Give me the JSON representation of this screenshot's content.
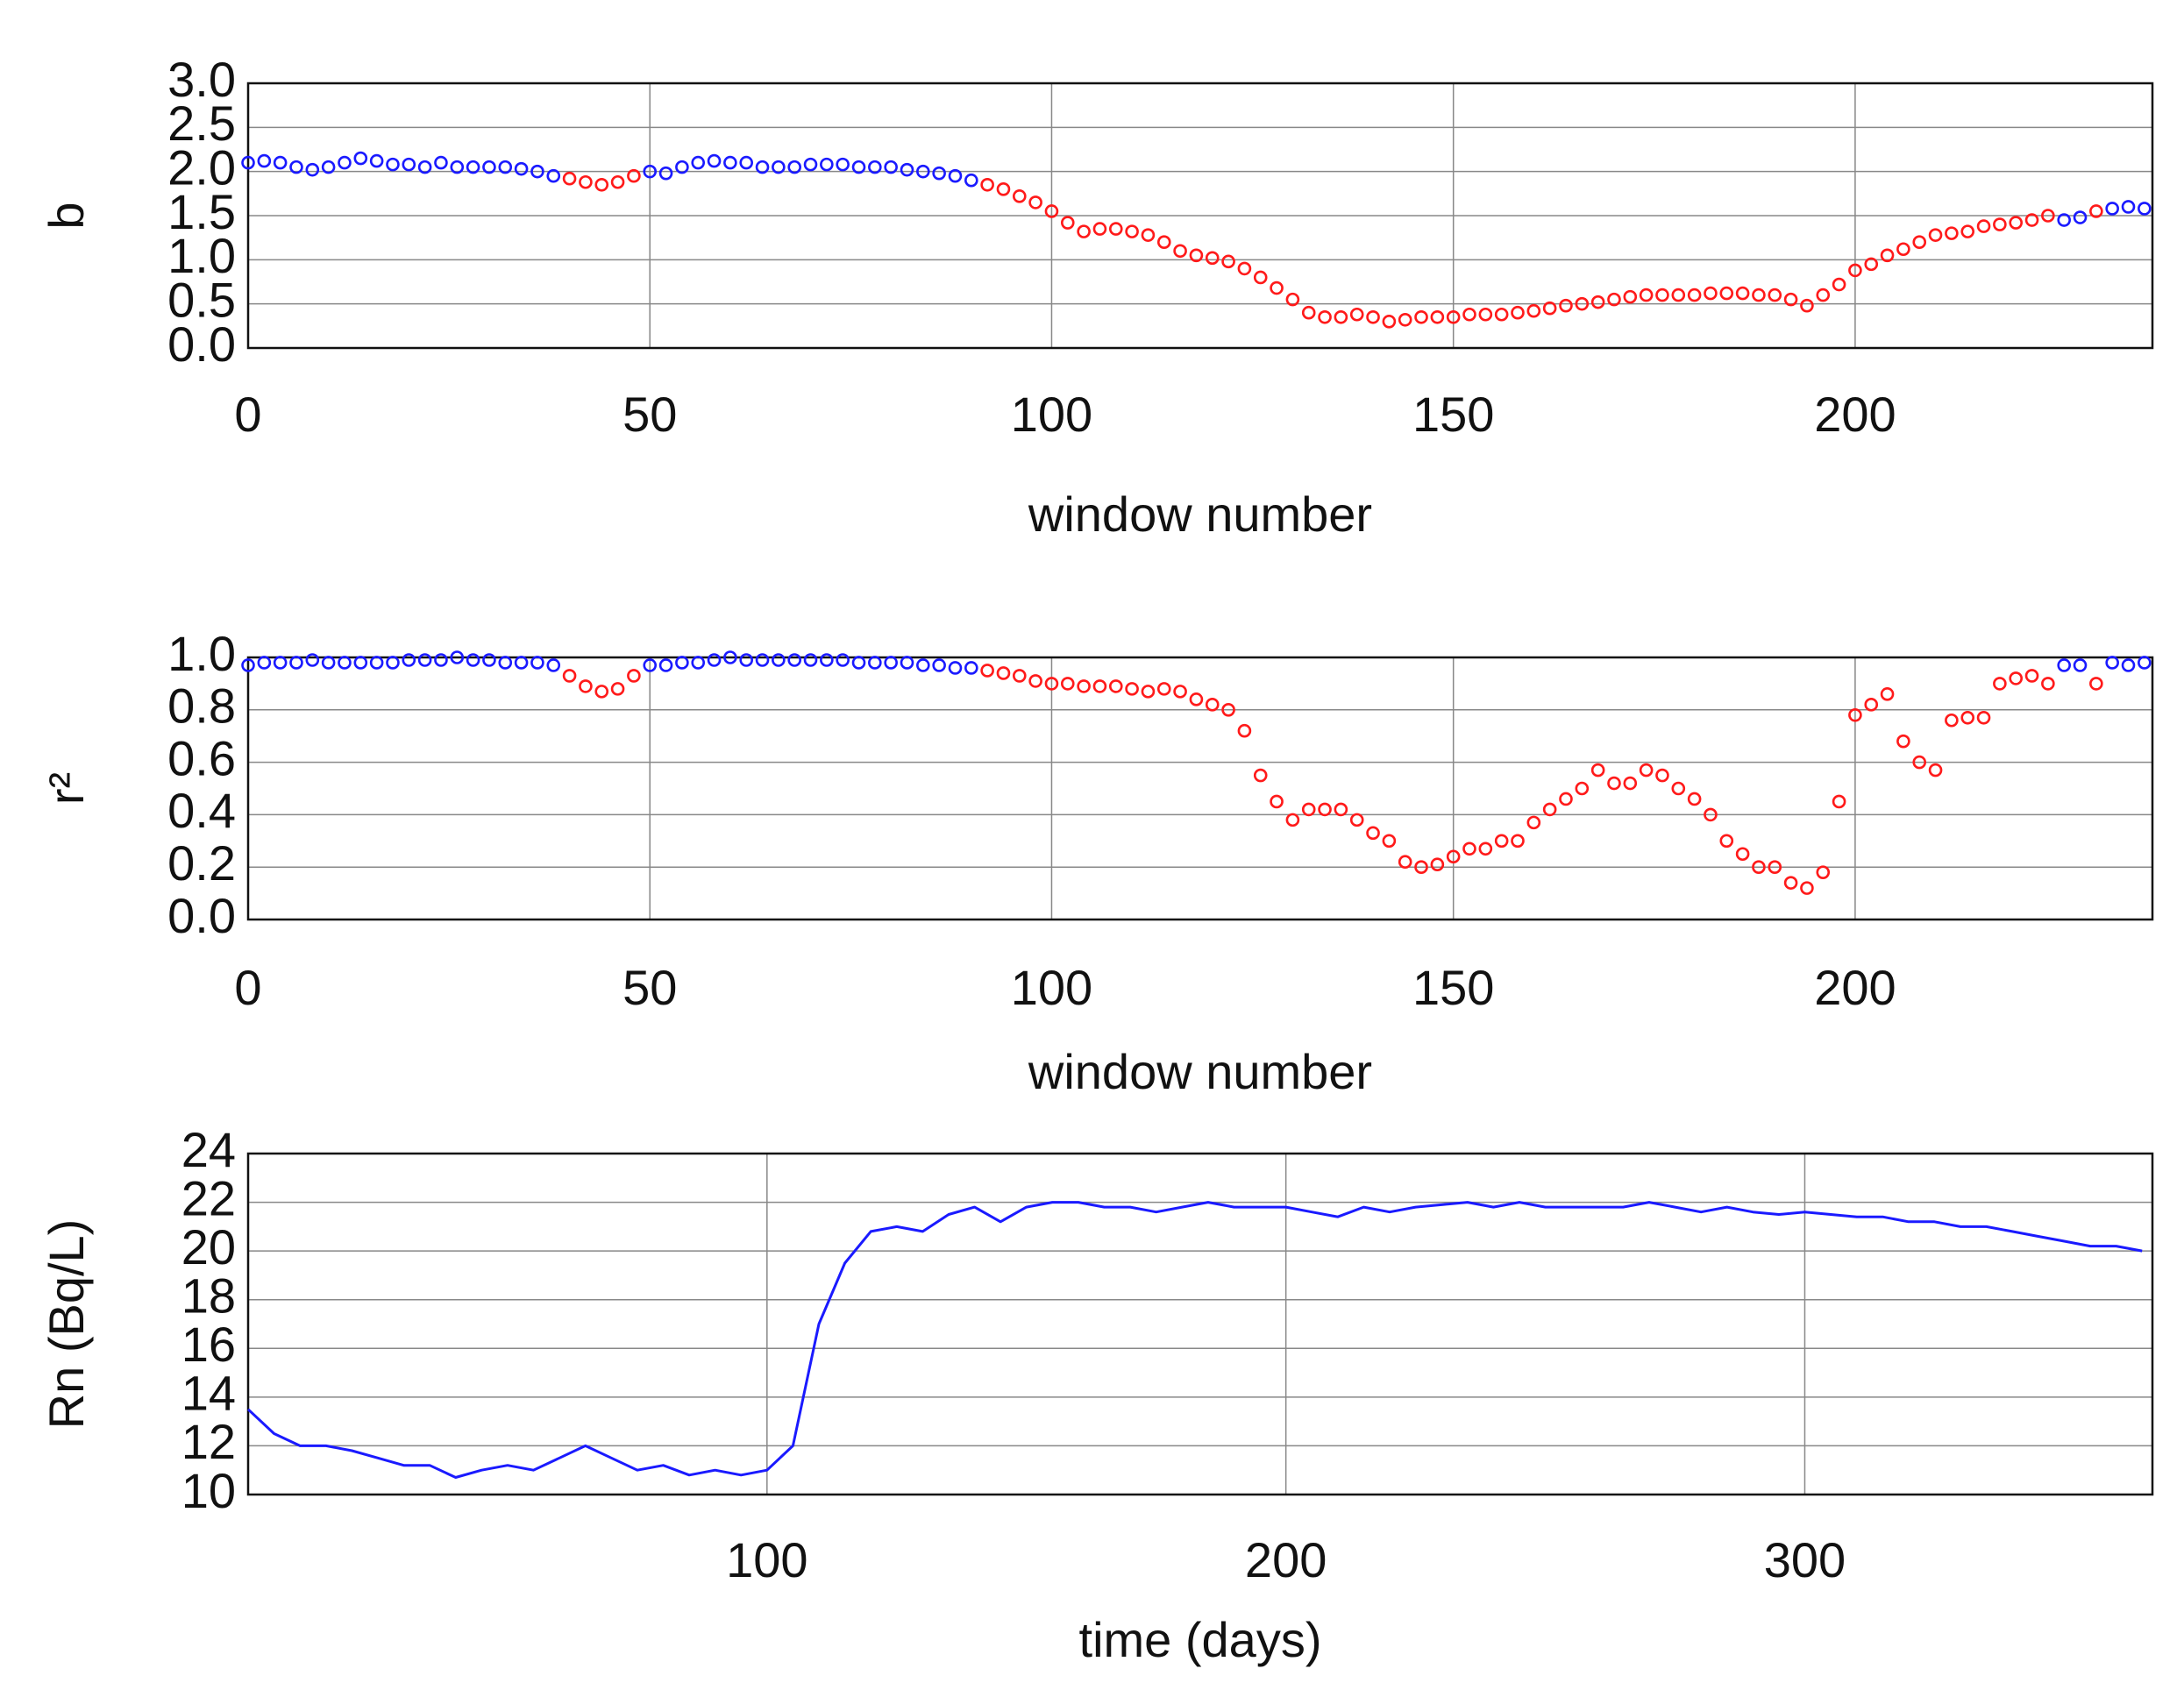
{
  "chart_data": [
    {
      "type": "scatter",
      "x_label": "window number",
      "y_label": "b",
      "xlim": [
        0,
        237
      ],
      "ylim": [
        0,
        3
      ],
      "xticks": [
        0,
        50,
        100,
        150,
        200
      ],
      "yticks": [
        {
          "value": 0,
          "label": "0.0"
        },
        {
          "value": 0.5,
          "label": "0.5"
        },
        {
          "value": 1,
          "label": "1.0"
        },
        {
          "value": 1.5,
          "label": "1.5"
        },
        {
          "value": 2,
          "label": "2.0"
        },
        {
          "value": 2.5,
          "label": "2.5"
        },
        {
          "value": 3,
          "label": "3.0"
        }
      ],
      "grid": true,
      "series": [
        {
          "color": "#1a1aff",
          "x": [
            0,
            2,
            4,
            6,
            8,
            10,
            12,
            14,
            16,
            18,
            20,
            22,
            24,
            26,
            28,
            30,
            32,
            34,
            36,
            38,
            50,
            52,
            54,
            56,
            58,
            60,
            62,
            64,
            66,
            68,
            70,
            72,
            74,
            76,
            78,
            80,
            82,
            84,
            86,
            88,
            90,
            226,
            228,
            232,
            234,
            236
          ],
          "values": [
            2.1,
            2.12,
            2.1,
            2.05,
            2.02,
            2.05,
            2.1,
            2.15,
            2.12,
            2.08,
            2.08,
            2.05,
            2.1,
            2.05,
            2.05,
            2.05,
            2.05,
            2.03,
            2.0,
            1.95,
            2.0,
            1.98,
            2.05,
            2.1,
            2.12,
            2.1,
            2.1,
            2.05,
            2.05,
            2.05,
            2.08,
            2.08,
            2.08,
            2.05,
            2.05,
            2.05,
            2.02,
            2.0,
            1.98,
            1.95,
            1.9,
            1.45,
            1.48,
            1.58,
            1.6,
            1.58
          ]
        },
        {
          "color": "#ff1a1a",
          "x": [
            40,
            42,
            44,
            46,
            48,
            92,
            94,
            96,
            98,
            100,
            102,
            104,
            106,
            108,
            110,
            112,
            114,
            116,
            118,
            120,
            122,
            124,
            126,
            128,
            130,
            132,
            134,
            136,
            138,
            140,
            142,
            144,
            146,
            148,
            150,
            152,
            154,
            156,
            158,
            160,
            162,
            164,
            166,
            168,
            170,
            172,
            174,
            176,
            178,
            180,
            182,
            184,
            186,
            188,
            190,
            192,
            194,
            196,
            198,
            200,
            202,
            204,
            206,
            208,
            210,
            212,
            214,
            216,
            218,
            220,
            222,
            224,
            230
          ],
          "values": [
            1.92,
            1.88,
            1.85,
            1.88,
            1.95,
            1.85,
            1.8,
            1.72,
            1.65,
            1.55,
            1.42,
            1.32,
            1.35,
            1.35,
            1.32,
            1.28,
            1.2,
            1.1,
            1.05,
            1.02,
            0.98,
            0.9,
            0.8,
            0.68,
            0.55,
            0.4,
            0.35,
            0.35,
            0.38,
            0.35,
            0.3,
            0.32,
            0.35,
            0.35,
            0.35,
            0.38,
            0.38,
            0.38,
            0.4,
            0.42,
            0.45,
            0.48,
            0.5,
            0.52,
            0.55,
            0.58,
            0.6,
            0.6,
            0.6,
            0.6,
            0.62,
            0.62,
            0.62,
            0.6,
            0.6,
            0.55,
            0.48,
            0.6,
            0.72,
            0.88,
            0.95,
            1.05,
            1.12,
            1.2,
            1.28,
            1.3,
            1.32,
            1.38,
            1.4,
            1.42,
            1.45,
            1.5,
            1.55
          ]
        }
      ]
    },
    {
      "type": "scatter",
      "x_label": "window number",
      "y_label": "r²",
      "xlim": [
        0,
        237
      ],
      "ylim": [
        0,
        1
      ],
      "xticks": [
        0,
        50,
        100,
        150,
        200
      ],
      "yticks": [
        {
          "value": 0,
          "label": "0.0"
        },
        {
          "value": 0.2,
          "label": "0.2"
        },
        {
          "value": 0.4,
          "label": "0.4"
        },
        {
          "value": 0.6,
          "label": "0.6"
        },
        {
          "value": 0.8,
          "label": "0.8"
        },
        {
          "value": 1,
          "label": "1.0"
        }
      ],
      "grid": true,
      "series": [
        {
          "color": "#1a1aff",
          "x": [
            0,
            2,
            4,
            6,
            8,
            10,
            12,
            14,
            16,
            18,
            20,
            22,
            24,
            26,
            28,
            30,
            32,
            34,
            36,
            38,
            50,
            52,
            54,
            56,
            58,
            60,
            62,
            64,
            66,
            68,
            70,
            72,
            74,
            76,
            78,
            80,
            82,
            84,
            86,
            88,
            90,
            226,
            228,
            232,
            234,
            236
          ],
          "values": [
            0.97,
            0.98,
            0.98,
            0.98,
            0.99,
            0.98,
            0.98,
            0.98,
            0.98,
            0.98,
            0.99,
            0.99,
            0.99,
            1.0,
            0.99,
            0.99,
            0.98,
            0.98,
            0.98,
            0.97,
            0.97,
            0.97,
            0.98,
            0.98,
            0.99,
            1.0,
            0.99,
            0.99,
            0.99,
            0.99,
            0.99,
            0.99,
            0.99,
            0.98,
            0.98,
            0.98,
            0.98,
            0.97,
            0.97,
            0.96,
            0.96,
            0.97,
            0.97,
            0.98,
            0.97,
            0.98
          ]
        },
        {
          "color": "#ff1a1a",
          "x": [
            40,
            42,
            44,
            46,
            48,
            92,
            94,
            96,
            98,
            100,
            102,
            104,
            106,
            108,
            110,
            112,
            114,
            116,
            118,
            120,
            122,
            124,
            126,
            128,
            130,
            132,
            134,
            136,
            138,
            140,
            142,
            144,
            146,
            148,
            150,
            152,
            154,
            156,
            158,
            160,
            162,
            164,
            166,
            168,
            170,
            172,
            174,
            176,
            178,
            180,
            182,
            184,
            186,
            188,
            190,
            192,
            194,
            196,
            198,
            200,
            202,
            204,
            206,
            208,
            210,
            212,
            214,
            216,
            218,
            220,
            222,
            224,
            230
          ],
          "values": [
            0.93,
            0.89,
            0.87,
            0.88,
            0.93,
            0.95,
            0.94,
            0.93,
            0.91,
            0.9,
            0.9,
            0.89,
            0.89,
            0.89,
            0.88,
            0.87,
            0.88,
            0.87,
            0.84,
            0.82,
            0.8,
            0.72,
            0.55,
            0.45,
            0.38,
            0.42,
            0.42,
            0.42,
            0.38,
            0.33,
            0.3,
            0.22,
            0.2,
            0.21,
            0.24,
            0.27,
            0.27,
            0.3,
            0.3,
            0.37,
            0.42,
            0.46,
            0.5,
            0.57,
            0.52,
            0.52,
            0.57,
            0.55,
            0.5,
            0.46,
            0.4,
            0.3,
            0.25,
            0.2,
            0.2,
            0.14,
            0.12,
            0.18,
            0.45,
            0.78,
            0.82,
            0.86,
            0.68,
            0.6,
            0.57,
            0.76,
            0.77,
            0.77,
            0.9,
            0.92,
            0.93,
            0.9,
            0.9
          ]
        }
      ]
    },
    {
      "type": "line",
      "x_label": "time (days)",
      "y_label": "Rn (Bq/L)",
      "xlim": [
        0,
        367
      ],
      "ylim": [
        10,
        24
      ],
      "xticks": [
        100,
        200,
        300
      ],
      "yticks": [
        10,
        12,
        14,
        16,
        18,
        20,
        22,
        24
      ],
      "grid": true,
      "series": [
        {
          "color": "#1a1aff",
          "x": [
            0,
            5,
            10,
            15,
            20,
            25,
            30,
            35,
            40,
            45,
            50,
            55,
            60,
            65,
            70,
            75,
            80,
            85,
            90,
            95,
            100,
            105,
            110,
            115,
            120,
            125,
            130,
            135,
            140,
            145,
            150,
            155,
            160,
            165,
            170,
            175,
            180,
            185,
            190,
            195,
            200,
            205,
            210,
            215,
            220,
            225,
            230,
            235,
            240,
            245,
            250,
            255,
            260,
            265,
            270,
            275,
            280,
            285,
            290,
            295,
            300,
            305,
            310,
            315,
            320,
            325,
            330,
            335,
            340,
            345,
            350,
            355,
            360,
            365
          ],
          "values": [
            13.5,
            12.5,
            12.0,
            12.0,
            11.8,
            11.5,
            11.2,
            11.2,
            10.7,
            11.0,
            11.2,
            11.0,
            11.5,
            12.0,
            11.5,
            11.0,
            11.2,
            10.8,
            11.0,
            10.8,
            11.0,
            12.0,
            17.0,
            19.5,
            20.8,
            21.0,
            20.8,
            21.5,
            21.8,
            21.2,
            21.8,
            22.0,
            22.0,
            21.8,
            21.8,
            21.6,
            21.8,
            22.0,
            21.8,
            21.8,
            21.8,
            21.6,
            21.4,
            21.8,
            21.6,
            21.8,
            21.9,
            22.0,
            21.8,
            22.0,
            21.8,
            21.8,
            21.8,
            21.8,
            22.0,
            21.8,
            21.6,
            21.8,
            21.6,
            21.5,
            21.6,
            21.5,
            21.4,
            21.4,
            21.2,
            21.2,
            21.0,
            21.0,
            20.8,
            20.6,
            20.4,
            20.2,
            20.2,
            20.0
          ]
        }
      ]
    }
  ]
}
